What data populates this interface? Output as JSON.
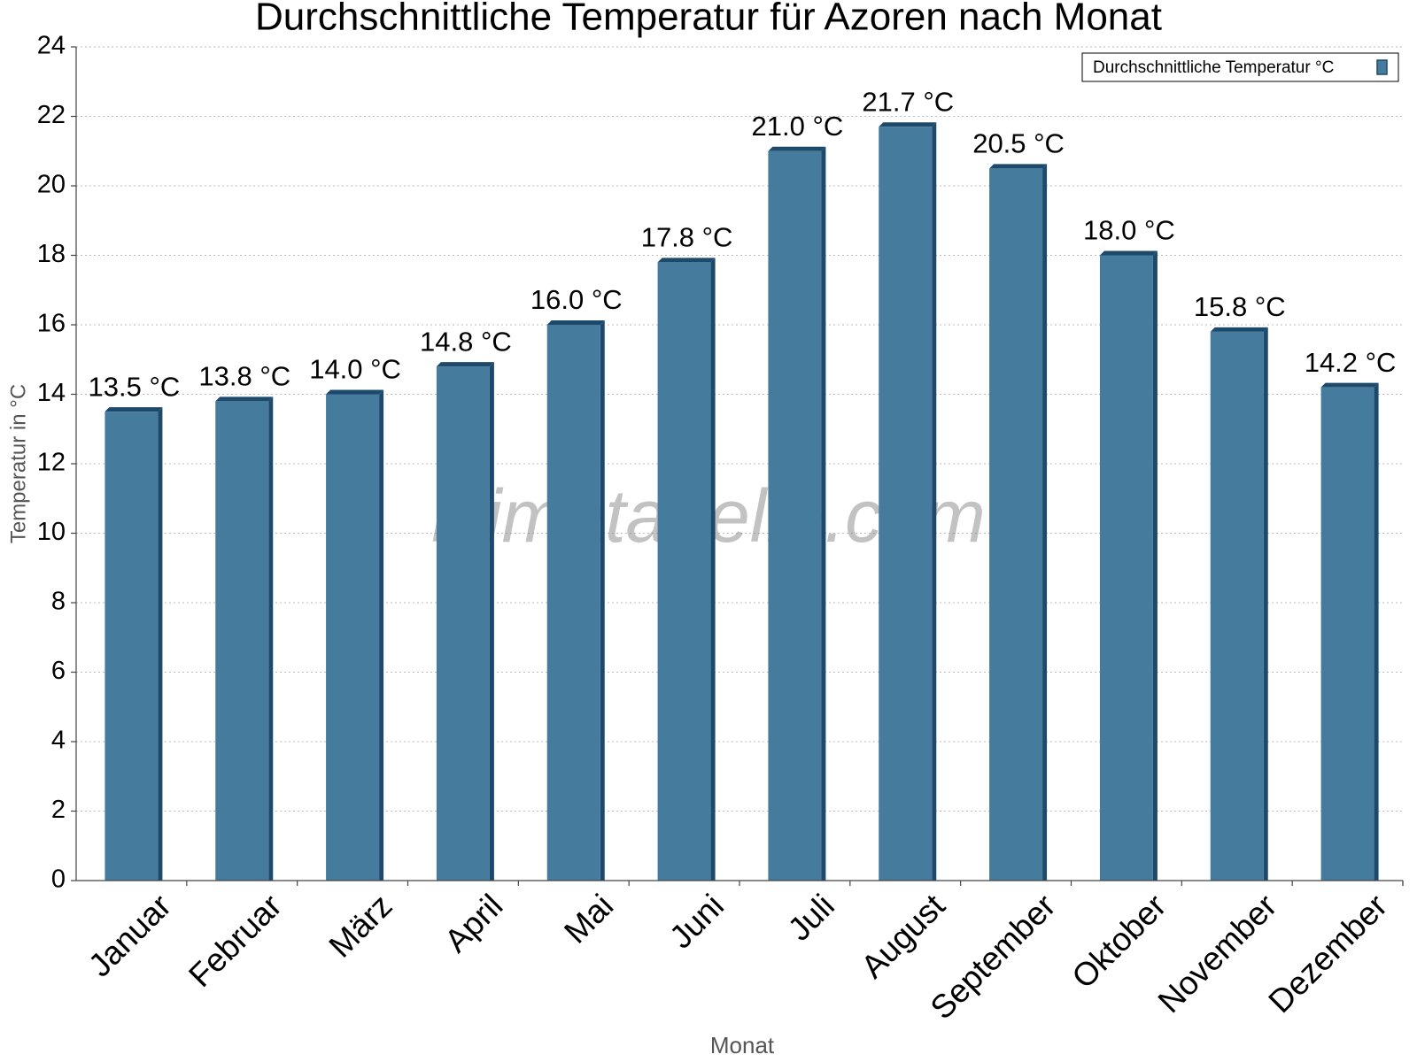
{
  "chart_data": {
    "type": "bar",
    "title": "Durchschnittliche Temperatur für Azoren nach Monat",
    "x_label": "Monat",
    "y_label": "Temperatur in °C",
    "watermark": "klimatabelle.com",
    "categories": [
      "Januar",
      "Februar",
      "März",
      "April",
      "Mai",
      "Juni",
      "Juli",
      "August",
      "September",
      "Oktober",
      "November",
      "Dezember"
    ],
    "series": [
      {
        "name": "Durchschnittliche Temperatur °C",
        "color": "#457b9d",
        "values": [
          13.5,
          13.8,
          14.0,
          14.8,
          16.0,
          17.8,
          21.0,
          21.7,
          20.5,
          18.0,
          15.8,
          14.2
        ],
        "value_labels": [
          "13.5 °C",
          "13.8 °C",
          "14.0 °C",
          "14.8 °C",
          "16.0 °C",
          "17.8 °C",
          "21.0 °C",
          "21.7 °C",
          "20.5 °C",
          "18.0 °C",
          "15.8 °C",
          "14.2 °C"
        ]
      }
    ],
    "ylim": [
      0,
      24
    ],
    "yticks": [
      0,
      2,
      4,
      6,
      8,
      10,
      12,
      14,
      16,
      18,
      20,
      22,
      24
    ],
    "grid": true,
    "legend": "top-right"
  }
}
